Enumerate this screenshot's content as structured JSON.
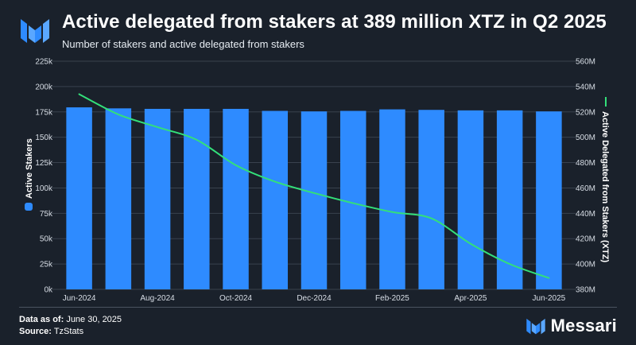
{
  "header": {
    "title": "Active delegated from stakers at 389 million XTZ in Q2 2025",
    "subtitle": "Number of stakers and active delegated from stakers"
  },
  "footer": {
    "as_of_label": "Data as of:",
    "as_of_value": "June 30, 2025",
    "source_label": "Source:",
    "source_value": "TzStats",
    "brand_name": "Messari"
  },
  "colors": {
    "background": "#1a212b",
    "bars": "#2e8bff",
    "line": "#33e07a",
    "gridline": "#39424e",
    "brand_accent": "#2e8bff"
  },
  "chart_data": {
    "type": "bar+line",
    "categories": [
      "Jun-2024",
      "Jul-2024",
      "Aug-2024",
      "Sep-2024",
      "Oct-2024",
      "Nov-2024",
      "Dec-2024",
      "Jan-2025",
      "Feb-2025",
      "Mar-2025",
      "Apr-2025",
      "May-2025",
      "Jun-2025"
    ],
    "x_tick_labels": [
      "Jun-2024",
      "Aug-2024",
      "Oct-2024",
      "Dec-2024",
      "Feb-2025",
      "Apr-2025",
      "Jun-2025"
    ],
    "series": [
      {
        "name": "Active Stakers",
        "type": "bar",
        "axis": "left",
        "values": [
          179500,
          178500,
          178000,
          178000,
          178000,
          176000,
          175500,
          176000,
          177500,
          177000,
          176500,
          176500,
          175500
        ]
      },
      {
        "name": "Active Delegated from Stakers (XTZ)",
        "type": "line",
        "axis": "right",
        "points": [
          {
            "x": "2024-06-01",
            "y": 534000000
          },
          {
            "x": "2024-07-01",
            "y": 518000000
          },
          {
            "x": "2024-08-01",
            "y": 508000000
          },
          {
            "x": "2024-09-01",
            "y": 498000000
          },
          {
            "x": "2024-10-01",
            "y": 478000000
          },
          {
            "x": "2024-11-01",
            "y": 465000000
          },
          {
            "x": "2024-12-01",
            "y": 456000000
          },
          {
            "x": "2025-01-01",
            "y": 448000000
          },
          {
            "x": "2025-02-01",
            "y": 441000000
          },
          {
            "x": "2025-03-01",
            "y": 436000000
          },
          {
            "x": "2025-04-01",
            "y": 416000000
          },
          {
            "x": "2025-05-01",
            "y": 400000000
          },
          {
            "x": "2025-06-01",
            "y": 389000000
          }
        ]
      }
    ],
    "y_left": {
      "label": "Active Stakers",
      "lim": [
        0,
        225000
      ],
      "ticks": [
        0,
        25000,
        50000,
        75000,
        100000,
        125000,
        150000,
        175000,
        200000,
        225000
      ],
      "tick_labels": [
        "0k",
        "25k",
        "50k",
        "75k",
        "100k",
        "125k",
        "150k",
        "175k",
        "200k",
        "225k"
      ]
    },
    "y_right": {
      "label": "Active Delegated from Stakers (XTZ)",
      "lim": [
        380000000,
        560000000
      ],
      "ticks": [
        380000000,
        400000000,
        420000000,
        440000000,
        460000000,
        480000000,
        500000000,
        520000000,
        540000000,
        560000000
      ],
      "tick_labels": [
        "380M",
        "400M",
        "420M",
        "440M",
        "460M",
        "480M",
        "500M",
        "520M",
        "540M",
        "560M"
      ]
    },
    "grid": true
  }
}
